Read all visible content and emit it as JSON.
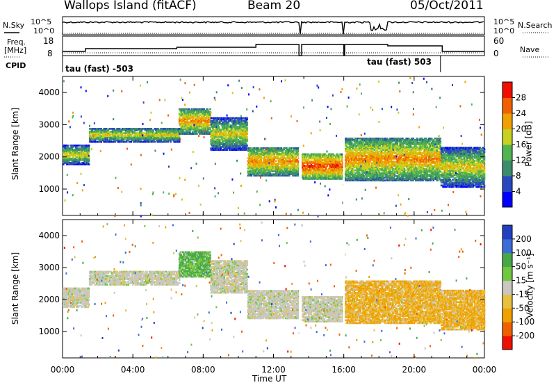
{
  "header": {
    "station": "Wallops Island (fitACF)",
    "beam": "Beam 20",
    "date": "05/Oct/2011"
  },
  "strip": {
    "nsky_label": "N.Sky",
    "nsky_ticks": [
      "10^5",
      "10^0"
    ],
    "nsearch_label": "N.Search",
    "nsearch_ticks": [
      "10^5",
      "10^0"
    ],
    "freq_label": "Freq.",
    "freq_unit": "[MHz]",
    "freq_ticks": [
      "18",
      "8"
    ],
    "nave_label": "Nave",
    "nave_ticks": [
      "60",
      "0"
    ],
    "cpid_label": "CPID",
    "cpid_segments": [
      {
        "label": "tau (fast) -503",
        "start_hour": 0,
        "end_hour": 14.5
      },
      {
        "label": "tau (fast) 503",
        "start_hour": 14.5,
        "end_hour": 21.5
      }
    ]
  },
  "chart_data": [
    {
      "type": "heatmap",
      "name": "power",
      "ylabel": "Slant Range [km]",
      "xlabel": "Time UT",
      "xlim": [
        0,
        24
      ],
      "ylim": [
        180,
        4500
      ],
      "x_ticks": [
        "00:00",
        "04:00",
        "08:00",
        "12:00",
        "16:00",
        "20:00",
        "00:00"
      ],
      "y_ticks": [
        1000,
        2000,
        3000,
        4000
      ],
      "colorbar": {
        "label": "Power [dB]",
        "range": [
          0,
          32
        ],
        "ticks": [
          4,
          8,
          12,
          16,
          20,
          24,
          28
        ],
        "colors": [
          "#0000ff",
          "#2848c0",
          "#3c8c6c",
          "#50b450",
          "#c8d020",
          "#f0a000",
          "#f06000",
          "#f01000"
        ]
      },
      "data_gaps_hours": [
        [
          13.45,
          13.6
        ],
        [
          15.95,
          16.05
        ]
      ],
      "bands": [
        {
          "t_start": 0,
          "t_end": 1.5,
          "range_from": 1750,
          "range_to": 2350,
          "power": 20
        },
        {
          "t_start": 1.5,
          "t_end": 6.6,
          "range_from": 2450,
          "range_to": 2900,
          "power": 20
        },
        {
          "t_start": 6.6,
          "t_end": 8.4,
          "range_from": 2700,
          "range_to": 3500,
          "power": 24
        },
        {
          "t_start": 8.4,
          "t_end": 10.5,
          "range_from": 2200,
          "range_to": 3200,
          "power": 20
        },
        {
          "t_start": 10.5,
          "t_end": 13.45,
          "range_from": 1400,
          "range_to": 2300,
          "power": 24
        },
        {
          "t_start": 13.6,
          "t_end": 16,
          "range_from": 1300,
          "range_to": 2100,
          "power": 28
        },
        {
          "t_start": 16.05,
          "t_end": 21.5,
          "range_from": 1250,
          "range_to": 2600,
          "power": 24
        },
        {
          "t_start": 21.5,
          "t_end": 24,
          "range_from": 1050,
          "range_to": 2300,
          "power": 20
        }
      ]
    },
    {
      "type": "heatmap",
      "name": "velocity",
      "ylabel": "Slant Range [km]",
      "xlabel": "Time UT",
      "xlim": [
        0,
        24
      ],
      "ylim": [
        180,
        4500
      ],
      "x_ticks": [
        "00:00",
        "04:00",
        "08:00",
        "12:00",
        "16:00",
        "20:00",
        "00:00"
      ],
      "y_ticks": [
        1000,
        2000,
        3000,
        4000
      ],
      "colorbar": {
        "label": "Velocity [m s⁻¹]",
        "ticks": [
          "200",
          "100",
          "50",
          "15",
          "-15",
          "-50",
          "-100",
          "-200"
        ],
        "colors": [
          "#2040c0",
          "#3c6cd8",
          "#48a848",
          "#70c840",
          "#c8c8c0",
          "#e8c040",
          "#f0a000",
          "#f06000",
          "#f01000"
        ]
      },
      "data_gaps_hours": [
        [
          13.45,
          13.6
        ],
        [
          15.95,
          16.05
        ]
      ],
      "bands": [
        {
          "t_start": 0,
          "t_end": 1.5,
          "range_from": 1750,
          "range_to": 2350,
          "velocity": 0
        },
        {
          "t_start": 1.5,
          "t_end": 6.6,
          "range_from": 2450,
          "range_to": 2900,
          "velocity": 0
        },
        {
          "t_start": 6.6,
          "t_end": 8.4,
          "range_from": 2700,
          "range_to": 3500,
          "velocity": 30
        },
        {
          "t_start": 8.4,
          "t_end": 10.5,
          "range_from": 2200,
          "range_to": 3200,
          "velocity": 0
        },
        {
          "t_start": 10.5,
          "t_end": 13.45,
          "range_from": 1400,
          "range_to": 2300,
          "velocity": 0
        },
        {
          "t_start": 13.6,
          "t_end": 16,
          "range_from": 1300,
          "range_to": 2100,
          "velocity": 0
        },
        {
          "t_start": 16.05,
          "t_end": 21.5,
          "range_from": 1250,
          "range_to": 2600,
          "velocity": -30
        },
        {
          "t_start": 21.5,
          "t_end": 24,
          "range_from": 1050,
          "range_to": 2300,
          "velocity": -30
        }
      ]
    }
  ]
}
